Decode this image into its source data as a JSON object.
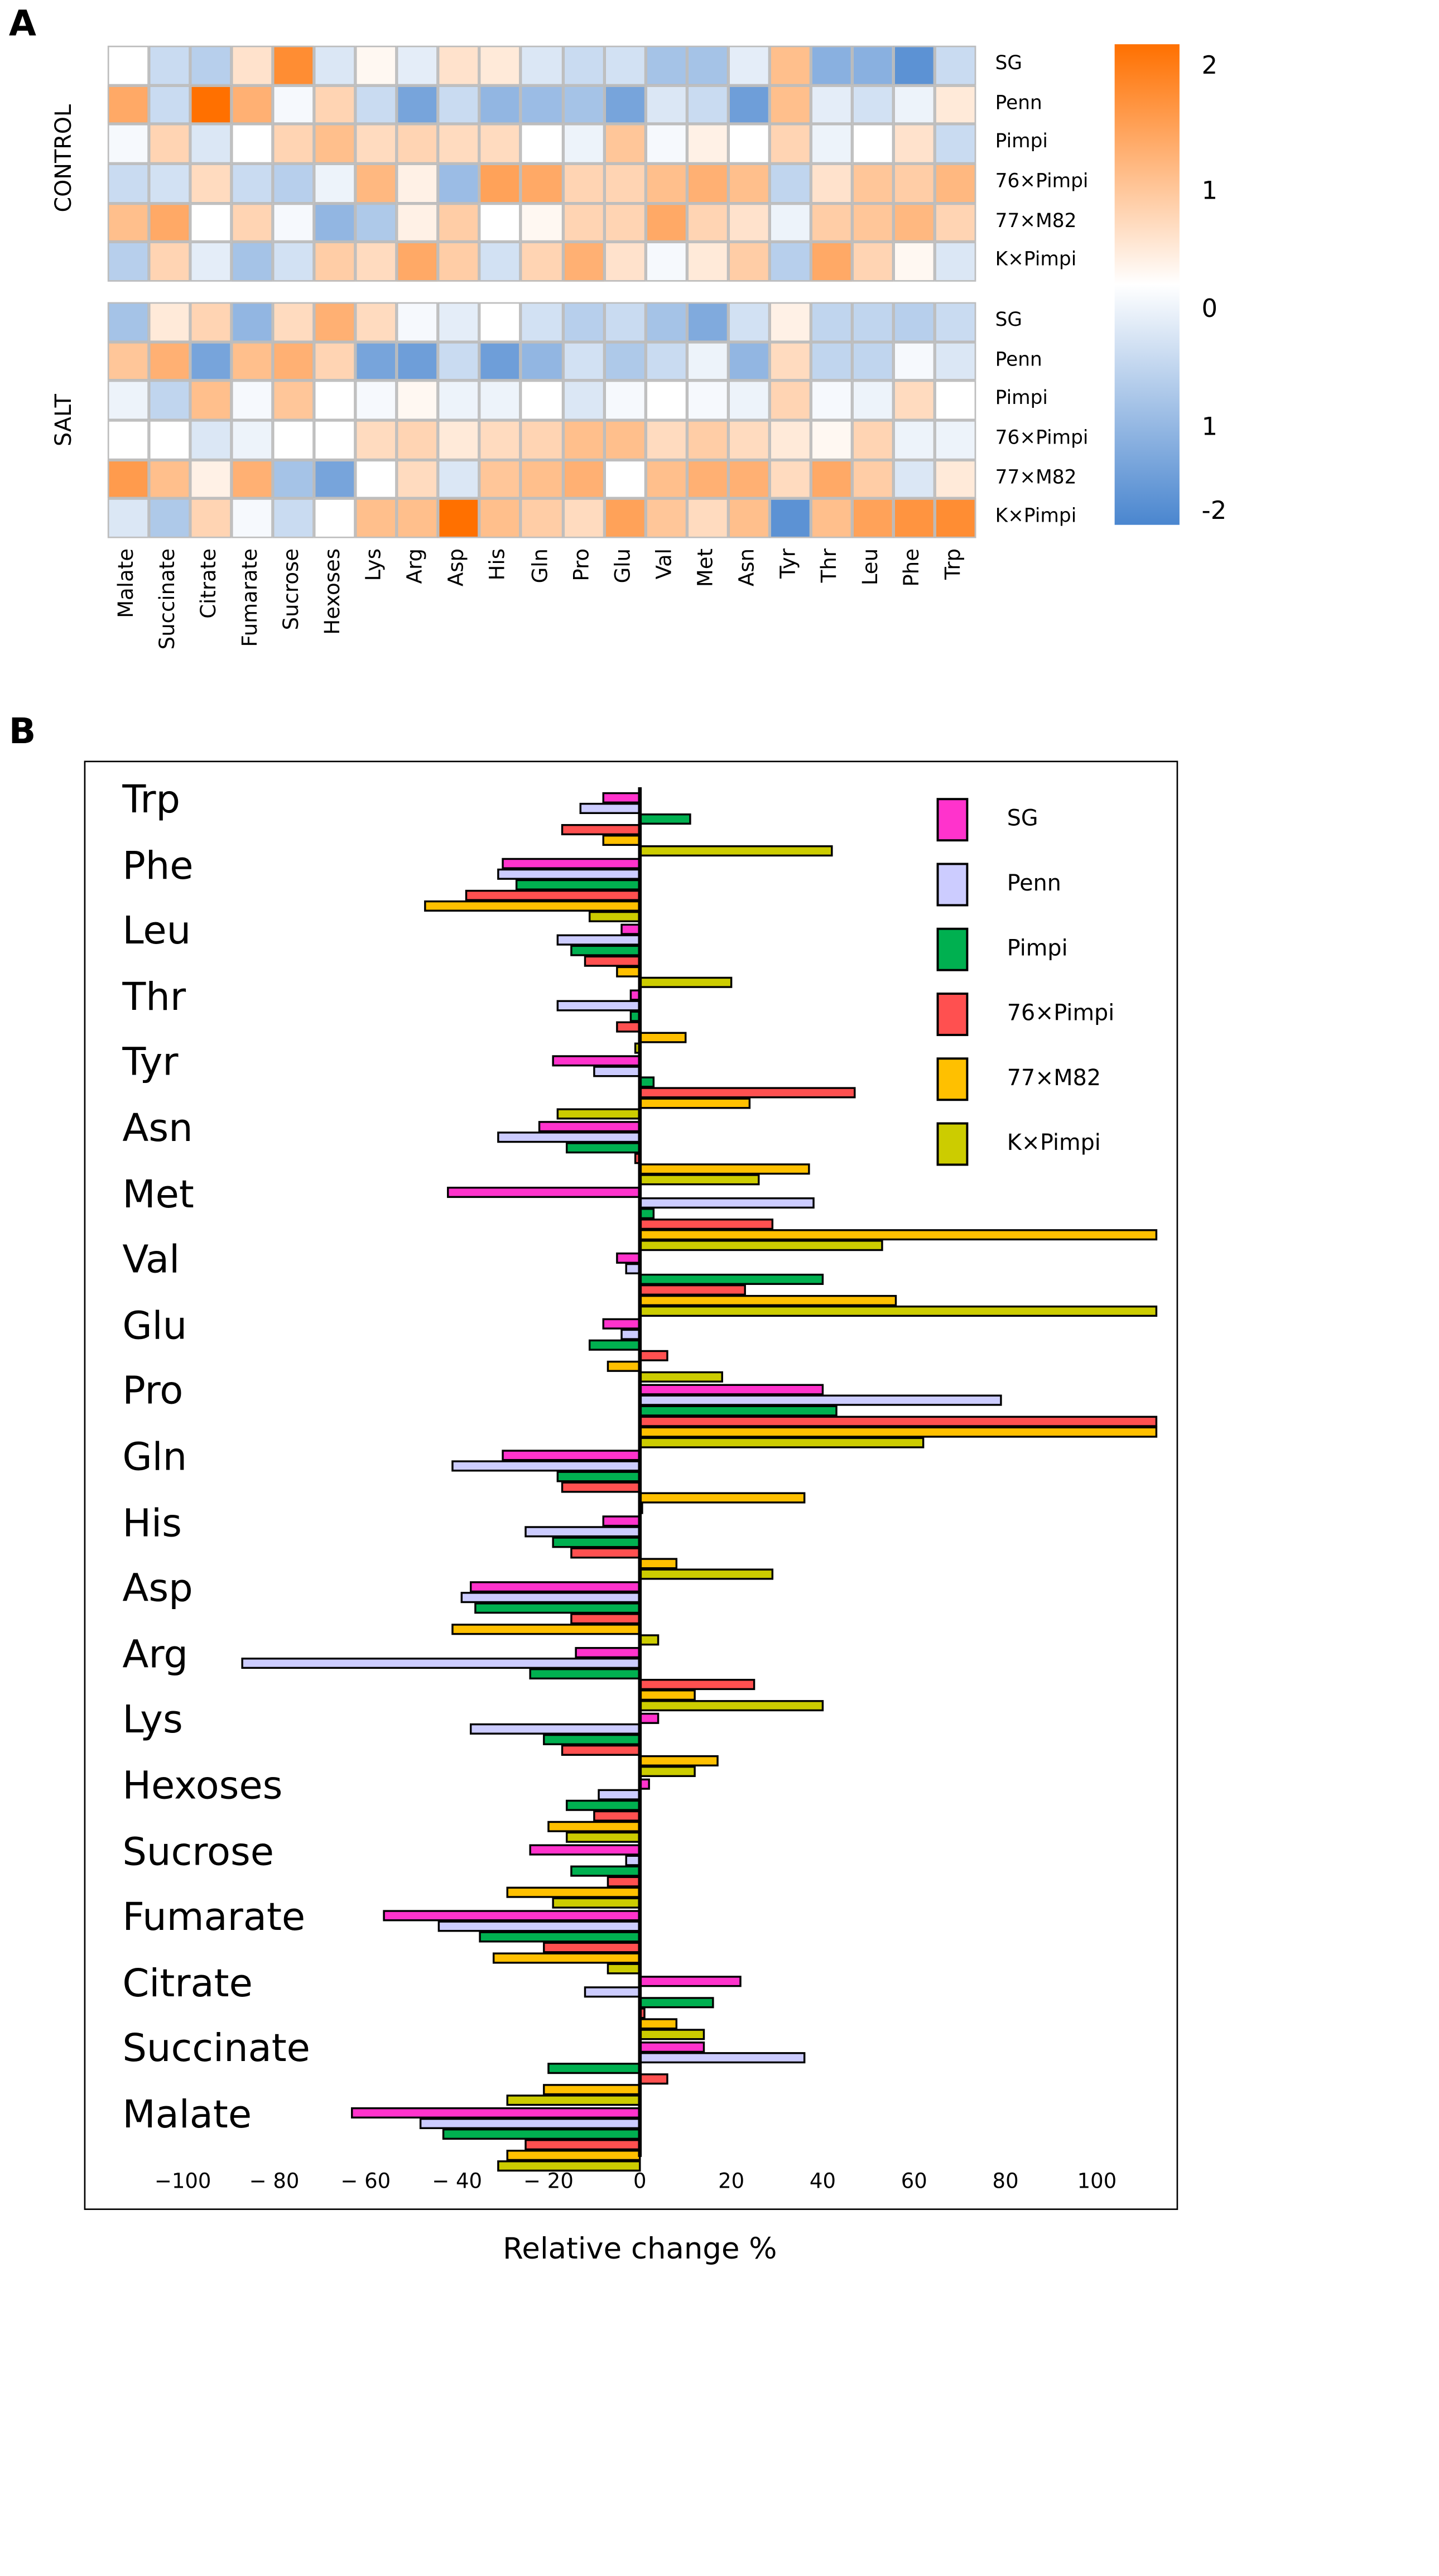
{
  "panel_labels": {
    "a": "A",
    "b": "B"
  },
  "chart_data": [
    {
      "type": "heatmap",
      "columns": [
        "Malate",
        "Succinate",
        "Citrate",
        "Fumarate",
        "Sucrose",
        "Hexoses",
        "Lys",
        "Arg",
        "Asp",
        "His",
        "Gln",
        "Pro",
        "Glu",
        "Val",
        "Met",
        "Asn",
        "Tyr",
        "Thr",
        "Leu",
        "Phe",
        "Trp"
      ],
      "rows": [
        "SG",
        "Penn",
        "Pimpi",
        "76×Pimpi",
        "77×M82",
        "K×Pimpi"
      ],
      "groups": [
        {
          "name": "CONTROL",
          "values": [
            [
              0,
              -0.6,
              -0.8,
              0.4,
              1.6,
              -0.4,
              0.1,
              -0.3,
              0.4,
              0.3,
              -0.4,
              -0.6,
              -0.5,
              -1.0,
              -1.0,
              -0.3,
              0.9,
              -1.3,
              -1.3,
              -1.8,
              -0.6
            ],
            [
              1.2,
              -0.6,
              2.0,
              1.1,
              -0.1,
              0.6,
              -0.6,
              -1.5,
              -0.6,
              -1.2,
              -1.1,
              -1.0,
              -1.5,
              -0.4,
              -0.6,
              -1.6,
              0.9,
              -0.3,
              -0.5,
              -0.2,
              0.3
            ],
            [
              -0.1,
              0.6,
              -0.4,
              0,
              0.6,
              0.9,
              0.5,
              0.6,
              0.5,
              0.5,
              0,
              -0.2,
              0.8,
              -0.1,
              0.2,
              0,
              0.6,
              -0.2,
              0,
              0.4,
              -0.6
            ],
            [
              -0.6,
              -0.5,
              0.5,
              -0.6,
              -0.8,
              -0.2,
              1.0,
              0.2,
              -1.1,
              1.3,
              1.2,
              0.6,
              0.6,
              0.9,
              1.1,
              0.9,
              -0.7,
              0.4,
              0.8,
              0.7,
              1.0
            ],
            [
              0.9,
              1.2,
              0,
              0.6,
              -0.1,
              -1.2,
              -0.9,
              0.2,
              0.7,
              0,
              0.1,
              0.6,
              0.6,
              1.2,
              0.6,
              0.4,
              -0.2,
              0.7,
              0.8,
              1.0,
              0.6
            ],
            [
              -0.8,
              0.6,
              -0.3,
              -1.0,
              -0.5,
              0.7,
              0.5,
              1.2,
              0.7,
              -0.5,
              0.6,
              1.1,
              0.4,
              -0.1,
              0.3,
              0.7,
              -0.8,
              1.2,
              0.6,
              0.1,
              -0.4
            ]
          ]
        },
        {
          "name": "SALT",
          "values": [
            [
              -1.0,
              0.3,
              0.6,
              -1.2,
              0.5,
              1.1,
              0.5,
              -0.1,
              -0.3,
              0,
              -0.5,
              -0.8,
              -0.6,
              -1.0,
              -1.4,
              -0.5,
              0.2,
              -0.7,
              -0.7,
              -0.8,
              -0.6
            ],
            [
              0.8,
              1.1,
              -1.5,
              0.9,
              1.1,
              0.6,
              -1.5,
              -1.6,
              -0.6,
              -1.6,
              -1.2,
              -0.5,
              -0.9,
              -0.6,
              -0.2,
              -1.2,
              0.5,
              -0.7,
              -0.7,
              -0.1,
              -0.4
            ],
            [
              -0.2,
              -0.7,
              0.9,
              -0.1,
              0.8,
              0,
              -0.1,
              0.1,
              -0.2,
              -0.2,
              0,
              -0.4,
              -0.1,
              0,
              -0.1,
              -0.2,
              0.6,
              -0.1,
              -0.2,
              0.5,
              0
            ],
            [
              0,
              0,
              -0.4,
              -0.2,
              0,
              0,
              0.5,
              0.6,
              0.3,
              0.5,
              0.6,
              0.9,
              0.9,
              0.5,
              0.7,
              0.5,
              0.3,
              0.1,
              0.6,
              -0.2,
              -0.2
            ],
            [
              1.4,
              0.9,
              0.2,
              1.1,
              -1.0,
              -1.5,
              0,
              0.5,
              -0.4,
              0.8,
              0.9,
              1.1,
              0,
              0.9,
              1.1,
              1.1,
              0.5,
              1.2,
              0.7,
              -0.4,
              0.3
            ],
            [
              -0.4,
              -0.9,
              0.6,
              -0.1,
              -0.6,
              0,
              0.9,
              0.9,
              2.0,
              0.9,
              0.7,
              0.5,
              1.3,
              0.8,
              0.5,
              0.9,
              -1.8,
              0.9,
              1.3,
              1.5,
              1.6
            ]
          ]
        }
      ],
      "colorbar": {
        "range": [
          -2,
          2
        ],
        "low_color": "#4a86cf",
        "mid_color": "#ffffff",
        "high_color": "#ff7000",
        "tick_labels": [
          "2",
          "1",
          "0",
          "1",
          "-2"
        ]
      }
    },
    {
      "type": "bar",
      "orientation": "horizontal",
      "categories": [
        "Trp",
        "Phe",
        "Leu",
        "Thr",
        "Tyr",
        "Asn",
        "Met",
        "Val",
        "Glu",
        "Pro",
        "Gln",
        "His",
        "Asp",
        "Arg",
        "Lys",
        "Hexoses",
        "Sucrose",
        "Fumarate",
        "Citrate",
        "Succinate",
        "Malate"
      ],
      "series": [
        {
          "name": "SG",
          "color": "#ff33cc",
          "values": [
            -8,
            -30,
            -4,
            -2,
            -19,
            -22,
            -42,
            -5,
            -8,
            40,
            -30,
            -8,
            -37,
            -14,
            4,
            2,
            -24,
            -56,
            22,
            14,
            -63
          ]
        },
        {
          "name": "Penn",
          "color": "#ccccff",
          "values": [
            -13,
            -31,
            -18,
            -18,
            -10,
            -31,
            38,
            -3,
            -4,
            79,
            -41,
            -25,
            -39,
            -87,
            -37,
            -9,
            -3,
            -44,
            -12,
            36,
            -48
          ]
        },
        {
          "name": "Pimpi",
          "color": "#00b050",
          "values": [
            11,
            -27,
            -15,
            -2,
            3,
            -16,
            3,
            40,
            -11,
            43,
            -18,
            -19,
            -36,
            -24,
            -21,
            -16,
            -15,
            -35,
            16,
            -20,
            -43
          ]
        },
        {
          "name": "76×Pimpi",
          "color": "#ff5050",
          "values": [
            -17,
            -38,
            -12,
            -5,
            47,
            -1,
            29,
            23,
            6,
            120,
            -17,
            -15,
            -15,
            25,
            -17,
            -10,
            -7,
            -21,
            1,
            6,
            -25
          ]
        },
        {
          "name": "77×M82",
          "color": "#ffc000",
          "values": [
            -8,
            -47,
            -5,
            10,
            24,
            37,
            120,
            56,
            -7,
            120,
            36,
            8,
            -41,
            12,
            17,
            -20,
            -29,
            -32,
            8,
            -21,
            -29
          ]
        },
        {
          "name": "K×Pimpi",
          "color": "#cccc00",
          "values": [
            42,
            -11,
            20,
            -1,
            -18,
            26,
            53,
            120,
            18,
            62,
            0.5,
            29,
            4,
            40,
            12,
            -16,
            -19,
            -7,
            14,
            -29,
            -31
          ]
        }
      ],
      "xlim": [
        -113,
        113
      ],
      "xticks": [
        -100,
        -80,
        -60,
        -40,
        -20,
        0,
        20,
        40,
        60,
        80,
        100
      ],
      "xtick_labels": [
        "−100",
        "− 80",
        "− 60",
        "− 40",
        "− 20",
        "0",
        "20",
        "40",
        "60",
        "80",
        "100"
      ],
      "xlabel": "Relative change %",
      "legend": "top-right"
    }
  ]
}
